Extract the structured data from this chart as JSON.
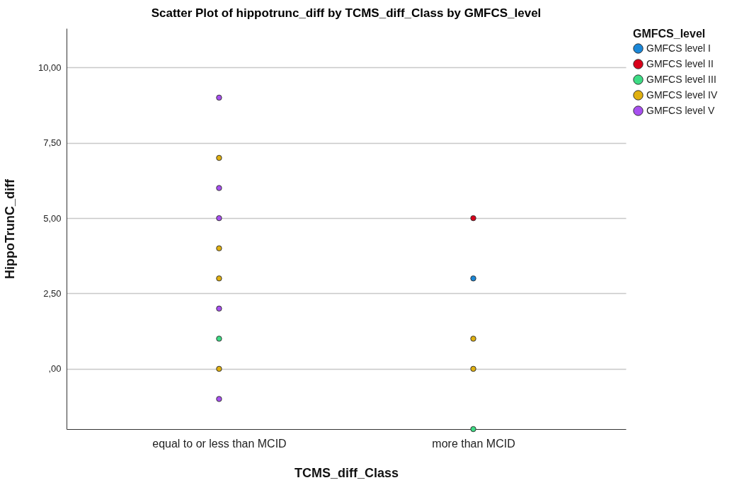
{
  "chart_data": {
    "type": "scatter",
    "title": "Scatter Plot of hippotrunc_diff by TCMS_diff_Class by GMFCS_level",
    "xlabel": "TCMS_diff_Class",
    "ylabel": "HippoTrunC_diff",
    "legend_title": "GMFCS_level",
    "categories": [
      "equal to or less than MCID",
      "more than MCID"
    ],
    "ylim": [
      -2,
      11.3
    ],
    "yticks": [
      {
        "value": 0,
        "label": ",00"
      },
      {
        "value": 2.5,
        "label": "2,50"
      },
      {
        "value": 5,
        "label": "5,00"
      },
      {
        "value": 7.5,
        "label": "7,50"
      },
      {
        "value": 10,
        "label": "10,00"
      }
    ],
    "grid": "y",
    "legend": "top right",
    "marker": "circle",
    "series": [
      {
        "name": "GMFCS level I",
        "color": "#1a87d8",
        "x": [
          "more than MCID"
        ],
        "values": [
          3
        ]
      },
      {
        "name": "GMFCS level II",
        "color": "#d9001a",
        "x": [
          "more than MCID"
        ],
        "values": [
          5
        ]
      },
      {
        "name": "GMFCS level III",
        "color": "#3ddc84",
        "x": [
          "equal to or less than MCID",
          "more than MCID"
        ],
        "values": [
          1,
          -2
        ]
      },
      {
        "name": "GMFCS level IV",
        "color": "#e0b010",
        "x": [
          "equal to or less than MCID",
          "equal to or less than MCID",
          "equal to or less than MCID",
          "equal to or less than MCID",
          "more than MCID",
          "more than MCID"
        ],
        "values": [
          7,
          4,
          3,
          0,
          1,
          0
        ]
      },
      {
        "name": "GMFCS level V",
        "color": "#a850f0",
        "x": [
          "equal to or less than MCID",
          "equal to or less than MCID",
          "equal to or less than MCID",
          "equal to or less than MCID",
          "equal to or less than MCID"
        ],
        "values": [
          9,
          6,
          5,
          2,
          -1
        ]
      }
    ]
  }
}
